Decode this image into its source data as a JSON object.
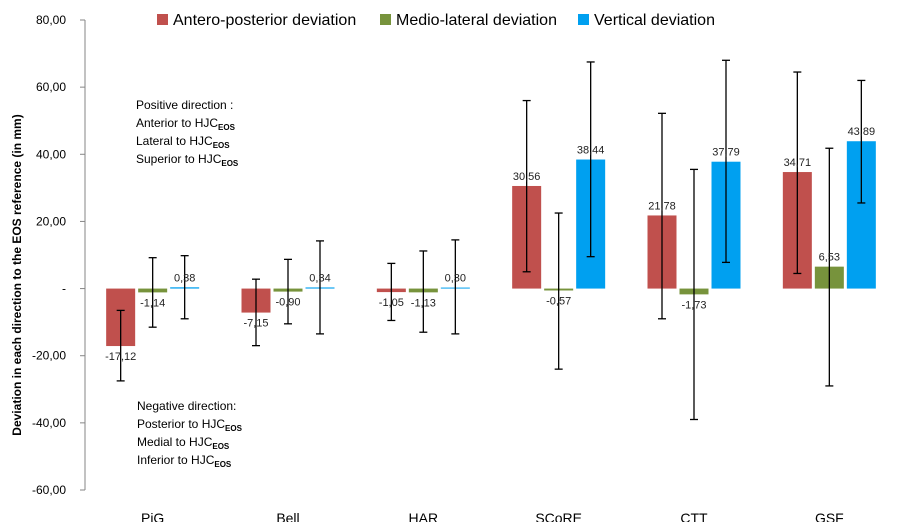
{
  "chart_data": {
    "type": "bar",
    "title": "",
    "xlabel": "",
    "ylabel": "Deviation in each direction to the EOS reference (in mm)",
    "ylim": [
      -60,
      80
    ],
    "yticks": [
      80,
      60,
      40,
      20,
      0,
      -20,
      -40,
      -60
    ],
    "ytick_labels": [
      "80,00",
      "60,00",
      "40,00",
      "20,00",
      "-",
      "-20,00",
      "-40,00",
      "-60,00"
    ],
    "categories": [
      "PiG",
      "Bell",
      "HAR",
      "SCoRE",
      "CTT",
      "GSF"
    ],
    "legend_position": "top",
    "series": [
      {
        "name": "Antero-posterior deviation",
        "color": "#C0504D",
        "values": [
          -17.12,
          -7.15,
          -1.05,
          30.56,
          21.78,
          34.71
        ],
        "labels": [
          "-17,12",
          "-7,15",
          "-1,05",
          "30,56",
          "21,78",
          "34,71"
        ],
        "error_low": [
          -27.5,
          -17.0,
          -9.5,
          5.0,
          -9.0,
          4.5
        ],
        "error_high": [
          -6.5,
          2.8,
          7.5,
          56.0,
          52.2,
          64.5
        ]
      },
      {
        "name": "Medio-lateral deviation",
        "color": "#77933C",
        "values": [
          -1.14,
          -0.9,
          -1.13,
          -0.57,
          -1.73,
          6.53
        ],
        "labels": [
          "-1,14",
          "-0,90",
          "-1,13",
          "-0,57",
          "-1,73",
          "6,53"
        ],
        "error_low": [
          -11.5,
          -10.5,
          -13.0,
          -24.0,
          -39.0,
          -29.0
        ],
        "error_high": [
          9.2,
          8.7,
          11.2,
          22.5,
          35.5,
          41.8
        ]
      },
      {
        "name": "Vertical deviation",
        "color": "#00A0F0",
        "values": [
          0.38,
          0.34,
          0.3,
          38.44,
          37.79,
          43.89
        ],
        "labels": [
          "0,38",
          "0,34",
          "0,30",
          "38,44",
          "37,79",
          "43,89"
        ],
        "error_low": [
          -9.0,
          -13.5,
          -13.5,
          9.5,
          7.8,
          25.5
        ],
        "error_high": [
          9.8,
          14.2,
          14.5,
          67.5,
          68.0,
          62.0
        ]
      }
    ],
    "annotations": {
      "positive": {
        "heading": "Positive direction :",
        "lines": [
          {
            "text": "Anterior to HJC",
            "sub": "EOS"
          },
          {
            "text": "Lateral to HJC",
            "sub": "EOS"
          },
          {
            "text": "Superior to HJC",
            "sub": "EOS"
          }
        ]
      },
      "negative": {
        "heading": "Negative direction:",
        "lines": [
          {
            "text": "Posterior to HJC",
            "sub": "EOS"
          },
          {
            "text": "Medial to HJC",
            "sub": "EOS"
          },
          {
            "text": "Inferior to HJC",
            "sub": "EOS"
          }
        ]
      }
    }
  }
}
